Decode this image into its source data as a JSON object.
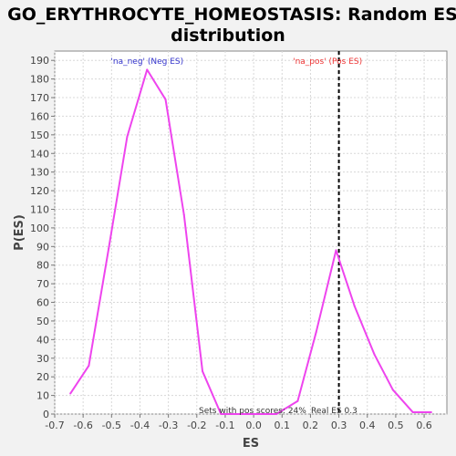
{
  "chart_data": {
    "type": "line",
    "title_line1": "GO_ERYTHROCYTE_HOMEOSTASIS: Random ES",
    "title_line2": "distribution",
    "xlabel": "ES",
    "ylabel": "P(ES)",
    "xlim": [
      -0.7,
      0.68
    ],
    "ylim": [
      0,
      195
    ],
    "x_ticks": [
      -0.7,
      -0.6,
      -0.5,
      -0.4,
      -0.3,
      -0.2,
      -0.1,
      0.0,
      0.1,
      0.2,
      0.3,
      0.4,
      0.5,
      0.6
    ],
    "x_tick_labels": [
      "-0.7",
      "-0.6",
      "-0.5",
      "-0.4",
      "-0.3",
      "-0.2",
      "-0.1",
      "0.0",
      "0.1",
      "0.2",
      "0.3",
      "0.4",
      "0.5",
      "0.6"
    ],
    "y_ticks": [
      0,
      10,
      20,
      30,
      40,
      50,
      60,
      70,
      80,
      90,
      100,
      110,
      120,
      130,
      140,
      150,
      160,
      170,
      180,
      190
    ],
    "y_tick_labels": [
      "0",
      "10",
      "20",
      "30",
      "40",
      "50",
      "60",
      "70",
      "80",
      "90",
      "100",
      "110",
      "120",
      "130",
      "140",
      "150",
      "160",
      "170",
      "180",
      "190"
    ],
    "grid": true,
    "series": [
      {
        "color": "#ee44ee",
        "x": [
          -0.645,
          -0.58,
          -0.51,
          -0.445,
          -0.375,
          -0.31,
          -0.245,
          -0.18,
          -0.115,
          -0.05,
          0.015,
          0.08,
          0.155,
          0.22,
          0.29,
          0.355,
          0.425,
          0.49,
          0.56,
          0.625
        ],
        "y": [
          11,
          26,
          89,
          149,
          185,
          169,
          107,
          23,
          0,
          0,
          0,
          0,
          7,
          44,
          88,
          58,
          32,
          13,
          1,
          1
        ]
      }
    ],
    "real_es": 0.3,
    "real_es_line_color": "#000000",
    "annotations": {
      "neg": {
        "text": "'na_neg' (Neg ES)",
        "color": "#3333cc",
        "x": -0.375
      },
      "pos": {
        "text": "'na_pos' (Pos ES)",
        "color": "#ee3333",
        "x": 0.26
      }
    },
    "footer_left": "Sets with pos scores: 24%",
    "footer_right": "Real ES 0.3"
  }
}
